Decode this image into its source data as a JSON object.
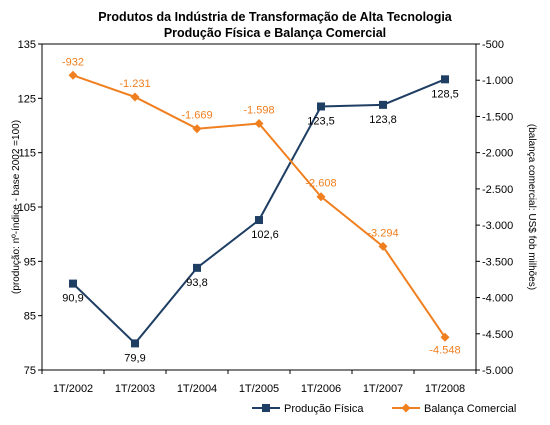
{
  "chart_data": {
    "type": "line",
    "title_line1": "Produtos da Indústria de Transformação de Alta Tecnologia",
    "title_line2": "Produção Física e Balança Comercial",
    "categories": [
      "1T/2002",
      "1T/2003",
      "1T/2004",
      "1T/2005",
      "1T/2006",
      "1T/2007",
      "1T/2008"
    ],
    "y_left": {
      "label": "(produção: nº-índice - base 2002 =100)",
      "ylim": [
        75,
        135
      ],
      "ticks": [
        "75",
        "85",
        "95",
        "105",
        "115",
        "125",
        "135"
      ]
    },
    "y_right": {
      "label": "(balança comercial: US$ fob milhões)",
      "ylim": [
        -5000,
        -500
      ],
      "ticks": [
        "-5.000",
        "-4.500",
        "-4.000",
        "-3.500",
        "-3.000",
        "-2.500",
        "-2.000",
        "-1.500",
        "-1.000",
        "-500"
      ]
    },
    "series": [
      {
        "name": "Produção Física",
        "axis": "left",
        "color": "#1f3e64",
        "marker": "square",
        "values": [
          90.9,
          79.9,
          93.8,
          102.6,
          123.5,
          123.8,
          128.5
        ],
        "labels": [
          "90,9",
          "79,9",
          "93,8",
          "102,6",
          "123,5",
          "123,8",
          "128,5"
        ]
      },
      {
        "name": "Balança Comercial",
        "axis": "right",
        "color": "#f07f1f",
        "marker": "diamond",
        "values": [
          -932,
          -1231,
          -1669,
          -1598,
          -2608,
          -3294,
          -4548
        ],
        "labels": [
          "-932",
          "-1.231",
          "-1.669",
          "-1.598",
          "-2.608",
          "-3.294",
          "-4.548"
        ]
      }
    ],
    "grid": false,
    "legend_position": "bottom-right"
  }
}
